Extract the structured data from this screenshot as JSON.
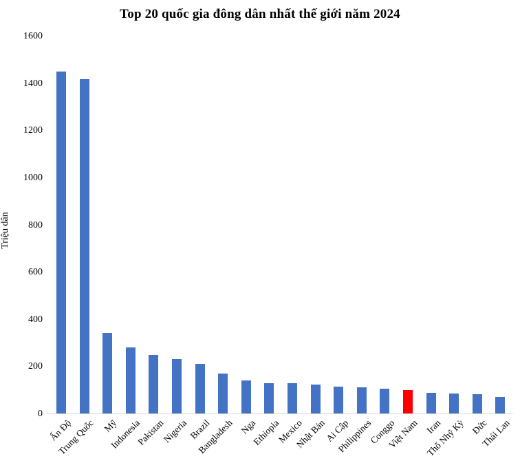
{
  "chart_data": {
    "type": "bar",
    "title": "Top 20 quốc gia đông dân nhất thế giới năm 2024",
    "ylabel": "Triệu dân",
    "xlabel": "",
    "categories": [
      "Ấn Độ",
      "Trung Quốc",
      "Mỹ",
      "Indonesia",
      "Pakistan",
      "Nigeria",
      "Brazil",
      "Bangladesh",
      "Nga",
      "Ethiopia",
      "Mexico",
      "Nhật Bản",
      "Ai Cập",
      "Philippines",
      "Conggo",
      "Việt Nam",
      "Iran",
      "Thổ Nhỹ Kỳ",
      "Đức",
      "Thái Lan"
    ],
    "values": [
      1450,
      1419,
      345,
      283,
      251,
      232,
      212,
      173,
      144,
      132,
      130,
      124,
      116,
      115,
      109,
      101,
      91,
      87,
      84,
      72
    ],
    "ylim": [
      0,
      1600
    ],
    "yticks": [
      0,
      200,
      400,
      600,
      800,
      1000,
      1200,
      1400,
      1600
    ],
    "grid": false,
    "legend": false,
    "bar_color": "#4472C4",
    "highlight": {
      "category": "Việt Nam",
      "color": "#FF0000"
    },
    "axis_line_color": "#D9D9D9"
  }
}
